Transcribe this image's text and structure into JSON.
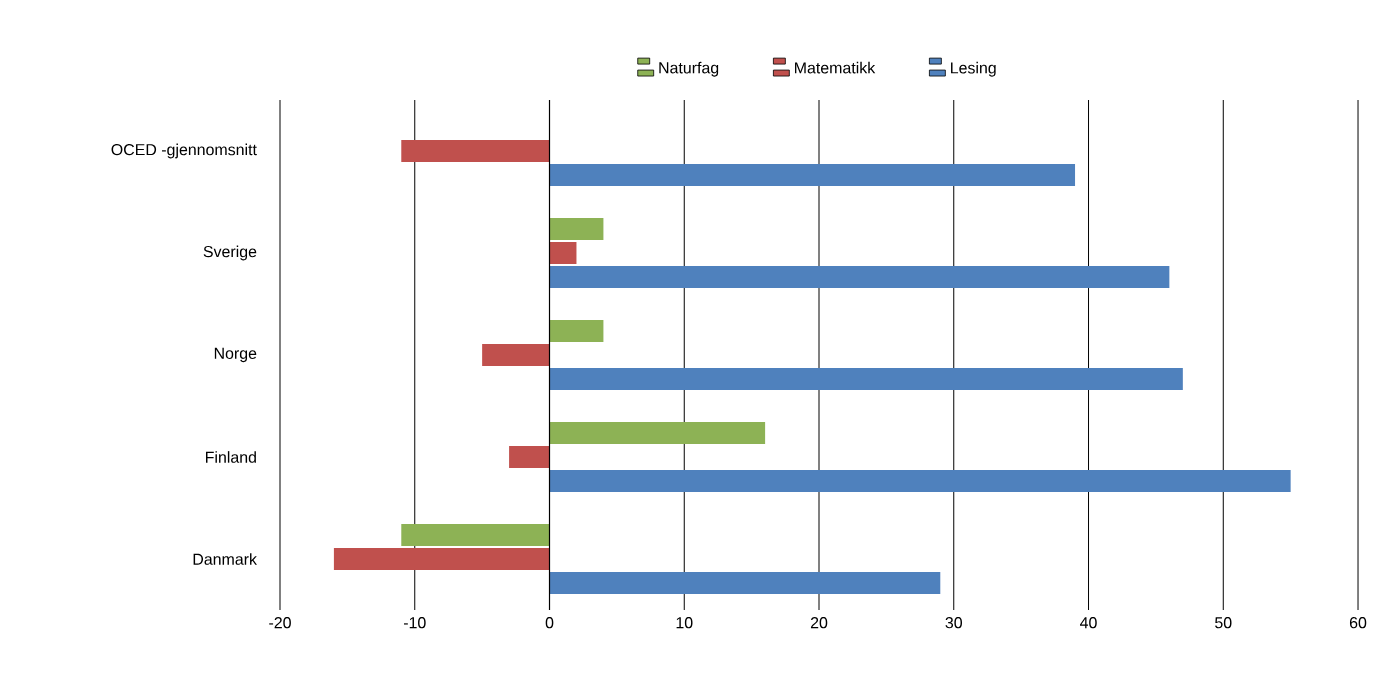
{
  "chart_data": {
    "type": "bar",
    "orientation": "horizontal",
    "categories": [
      "OCED  -gjennomsnitt",
      "Sverige",
      "Norge",
      "Finland",
      "Danmark"
    ],
    "series": [
      {
        "name": "Naturfag",
        "color": "#8db255",
        "values": [
          0,
          4,
          4,
          16,
          -11
        ]
      },
      {
        "name": "Matematikk",
        "color": "#c0504d",
        "values": [
          -11,
          2,
          -5,
          -3,
          -16
        ]
      },
      {
        "name": "Lesing",
        "color": "#4f81bd",
        "values": [
          39,
          46,
          47,
          55,
          29
        ]
      }
    ],
    "xlim": [
      -20,
      60
    ],
    "xticks": [
      -20,
      -10,
      0,
      10,
      20,
      30,
      40,
      50,
      60
    ],
    "grid": "x",
    "legend": "top"
  }
}
